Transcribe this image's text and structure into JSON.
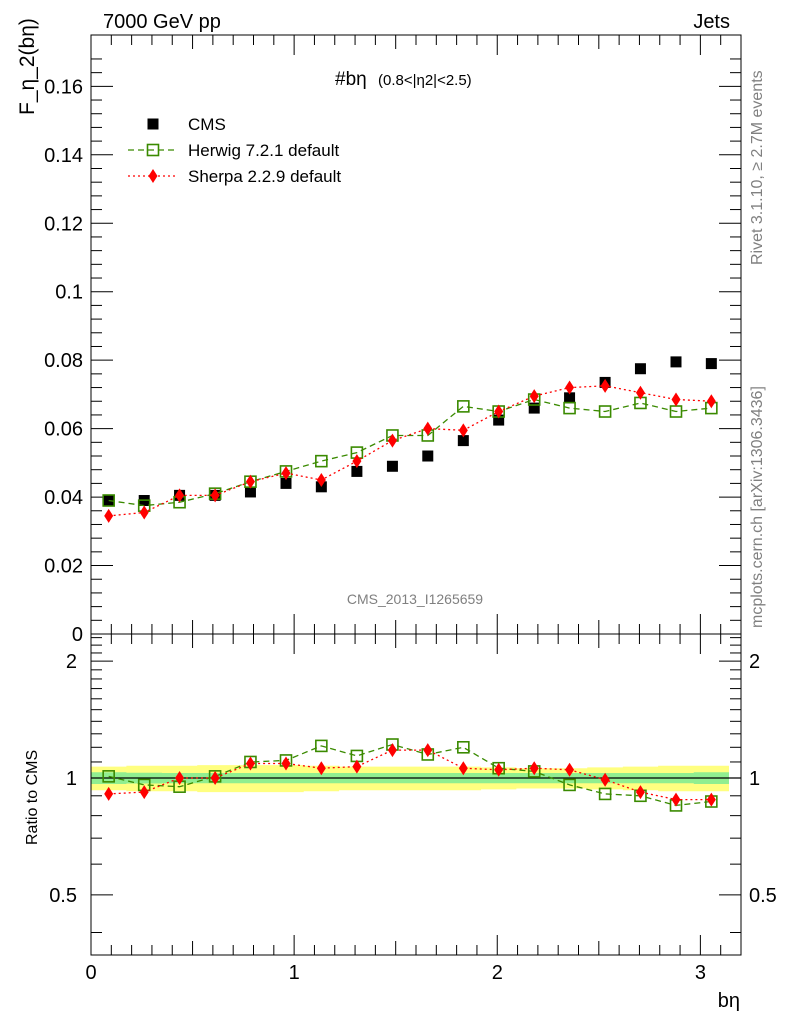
{
  "header": {
    "energy_label": "7000 GeV pp",
    "category_label": "Jets"
  },
  "side_labels": {
    "rivet": "Rivet 3.1.10, ≥ 2.7M events",
    "mcplots": "mcplots.cern.ch [arXiv:1306.3436]"
  },
  "watermark": "CMS_2013_I1265659",
  "chart_data": [
    {
      "type": "scatter",
      "title": "#bη",
      "subtitle": "(0.8<|η2|<2.5)",
      "ylabel": "F_η_2(bη)",
      "xlabel": "bη",
      "xlim": [
        0,
        3.2
      ],
      "ylim": [
        0,
        0.175
      ],
      "yticks": [
        0,
        0.02,
        0.04,
        0.06,
        0.08,
        0.1,
        0.12,
        0.14,
        0.16
      ],
      "ytick_labels": [
        "0",
        "0.02",
        "0.04",
        "0.06",
        "0.08",
        "0.1",
        "0.12",
        "0.14",
        "0.16"
      ],
      "x": [
        0.087,
        0.262,
        0.436,
        0.611,
        0.785,
        0.96,
        1.134,
        1.309,
        1.484,
        1.658,
        1.833,
        2.007,
        2.182,
        2.356,
        2.531,
        2.705,
        2.88,
        3.054
      ],
      "series": [
        {
          "name": "CMS",
          "color": "#000000",
          "marker": "filled-square",
          "values": [
            0.039,
            0.039,
            0.0405,
            0.0405,
            0.0415,
            0.044,
            0.043,
            0.0475,
            0.049,
            0.052,
            0.0565,
            0.0625,
            0.066,
            0.069,
            0.0735,
            0.0775,
            0.0795,
            0.079
          ]
        },
        {
          "name": "Herwig 7.2.1 default",
          "color": "#3a8a00",
          "marker": "open-square",
          "line": "dashed",
          "values": [
            0.039,
            0.0375,
            0.0385,
            0.041,
            0.0445,
            0.0475,
            0.0505,
            0.053,
            0.058,
            0.058,
            0.0665,
            0.065,
            0.0685,
            0.066,
            0.065,
            0.0675,
            0.065,
            0.066
          ]
        },
        {
          "name": "Sherpa 2.2.9 default",
          "color": "#ff0000",
          "marker": "filled-diamond",
          "line": "dotted",
          "values": [
            0.0345,
            0.0355,
            0.0405,
            0.0405,
            0.0445,
            0.047,
            0.045,
            0.0505,
            0.0565,
            0.06,
            0.0595,
            0.065,
            0.0695,
            0.072,
            0.0725,
            0.0705,
            0.0685,
            0.068
          ]
        }
      ],
      "legend_position": "top-left"
    },
    {
      "type": "scatter",
      "ylabel": "Ratio to CMS",
      "xlabel": "bη",
      "xlim": [
        0,
        3.2
      ],
      "ylim": [
        0.35,
        2.35
      ],
      "ytick_labels": [
        "0.5",
        "1",
        "2"
      ],
      "yticks": [
        0.5,
        1,
        2
      ],
      "xtick_labels": [
        "0",
        "1",
        "2",
        "3"
      ],
      "xticks": [
        0,
        1,
        2,
        3
      ],
      "reference_line": 1,
      "band_inner_color": "#90ee90",
      "band_outer_color": "#ffff80",
      "band_inner_halfwidth": [
        0.035,
        0.032,
        0.03,
        0.03,
        0.03,
        0.03,
        0.03,
        0.03,
        0.03,
        0.03,
        0.03,
        0.03,
        0.03,
        0.03,
        0.03,
        0.03,
        0.03,
        0.035
      ],
      "band_outer_halfwidth": [
        0.07,
        0.075,
        0.075,
        0.08,
        0.08,
        0.08,
        0.075,
        0.07,
        0.07,
        0.07,
        0.07,
        0.065,
        0.06,
        0.06,
        0.065,
        0.07,
        0.075,
        0.075
      ],
      "series": [
        {
          "name": "Herwig 7.2.1 default",
          "color": "#3a8a00",
          "marker": "open-square",
          "line": "dashed",
          "values": [
            1.01,
            0.96,
            0.95,
            1.01,
            1.1,
            1.11,
            1.21,
            1.14,
            1.22,
            1.15,
            1.2,
            1.06,
            1.04,
            0.96,
            0.91,
            0.9,
            0.85,
            0.87
          ]
        },
        {
          "name": "Sherpa 2.2.9 default",
          "color": "#ff0000",
          "marker": "filled-diamond",
          "line": "dotted",
          "values": [
            0.91,
            0.92,
            1.0,
            1.0,
            1.09,
            1.09,
            1.06,
            1.07,
            1.18,
            1.18,
            1.06,
            1.05,
            1.06,
            1.05,
            0.99,
            0.92,
            0.88,
            0.88
          ]
        }
      ]
    }
  ]
}
